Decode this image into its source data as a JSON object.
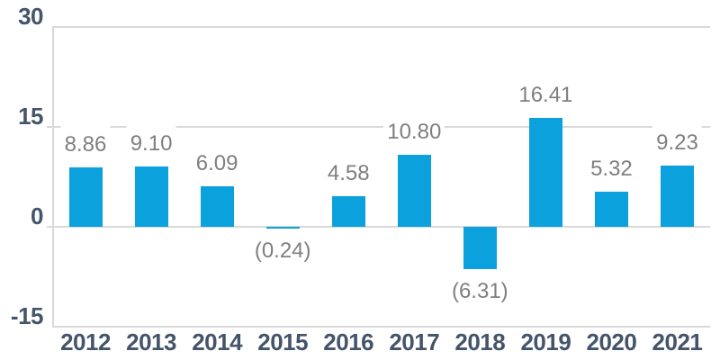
{
  "chart_data": {
    "type": "bar",
    "title": "",
    "xlabel": "",
    "ylabel": "",
    "categories": [
      "2012",
      "2013",
      "2014",
      "2015",
      "2016",
      "2017",
      "2018",
      "2019",
      "2020",
      "2021"
    ],
    "values": [
      8.86,
      9.1,
      6.09,
      -0.24,
      4.58,
      10.8,
      -6.31,
      16.41,
      5.32,
      9.23
    ],
    "value_labels": [
      "8.86",
      "9.10",
      "6.09",
      "(0.24)",
      "4.58",
      "10.80",
      "(6.31)",
      "16.41",
      "5.32",
      "9.23"
    ],
    "ylim": [
      -15,
      30
    ],
    "yticks": [
      30,
      15,
      0,
      -15
    ],
    "ytick_labels": [
      "30",
      "15",
      "0",
      "-15"
    ],
    "grid": true,
    "legend": "none",
    "colors": {
      "bar": "#0aa1dc",
      "gridline": "#d9d9d9",
      "axis_text": "#44546a",
      "data_label": "#7f7f7f",
      "background": "#ffffff"
    }
  }
}
